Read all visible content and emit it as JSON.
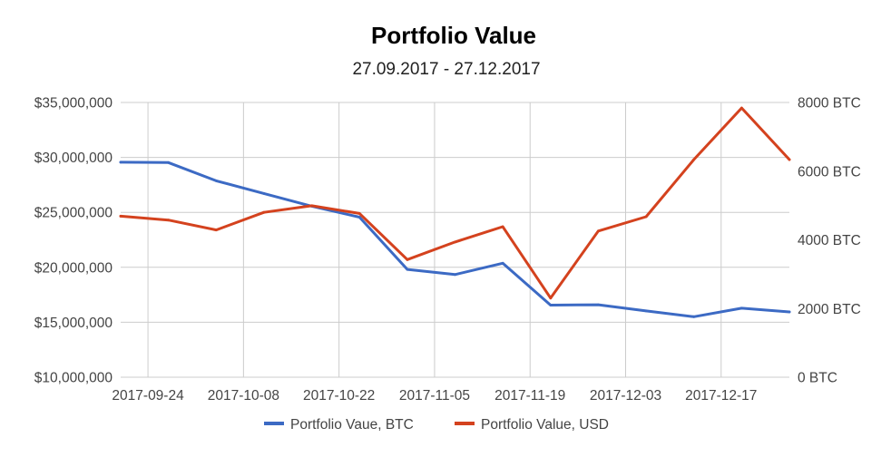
{
  "chart_data": {
    "type": "line",
    "title": "Portfolio Value",
    "subtitle": "27.09.2017 - 27.12.2017",
    "x": [
      "2017-09-20",
      "2017-09-27",
      "2017-10-04",
      "2017-10-11",
      "2017-10-18",
      "2017-10-25",
      "2017-11-01",
      "2017-11-08",
      "2017-11-15",
      "2017-11-22",
      "2017-11-29",
      "2017-12-06",
      "2017-12-13",
      "2017-12-20",
      "2017-12-27"
    ],
    "x_tick_labels": [
      "2017-09-24",
      "2017-10-08",
      "2017-10-22",
      "2017-11-05",
      "2017-11-19",
      "2017-12-03",
      "2017-12-17"
    ],
    "x_range": [
      "2017-09-20",
      "2017-12-27"
    ],
    "y_left": {
      "ylim": [
        10000000,
        35000000
      ],
      "tick_values": [
        10000000,
        15000000,
        20000000,
        25000000,
        30000000,
        35000000
      ],
      "tick_labels": [
        "$10,000,000",
        "$15,000,000",
        "$20,000,000",
        "$25,000,000",
        "$30,000,000",
        "$35,000,000"
      ]
    },
    "y_right": {
      "ylim": [
        0,
        8000
      ],
      "tick_values": [
        0,
        2000,
        4000,
        6000,
        8000
      ],
      "tick_labels": [
        "0 BTC",
        "2000 BTC",
        "4000 BTC",
        "6000 BTC",
        "8000 BTC"
      ]
    },
    "series": [
      {
        "name": "Portfolio Vaue, BTC",
        "axis": "right",
        "color": "#3c6ac4",
        "values": [
          6260,
          6250,
          5720,
          5350,
          4980,
          4660,
          3140,
          2990,
          3320,
          2100,
          2110,
          1930,
          1760,
          2010,
          1900
        ]
      },
      {
        "name": "Portfolio Value, USD",
        "axis": "left",
        "color": "#d4421e",
        "values": [
          24650000,
          24300000,
          23400000,
          25000000,
          25600000,
          24900000,
          20700000,
          22300000,
          23700000,
          17200000,
          23300000,
          24600000,
          29800000,
          34500000,
          29800000
        ]
      }
    ],
    "grid": true,
    "legend_position": "bottom"
  }
}
